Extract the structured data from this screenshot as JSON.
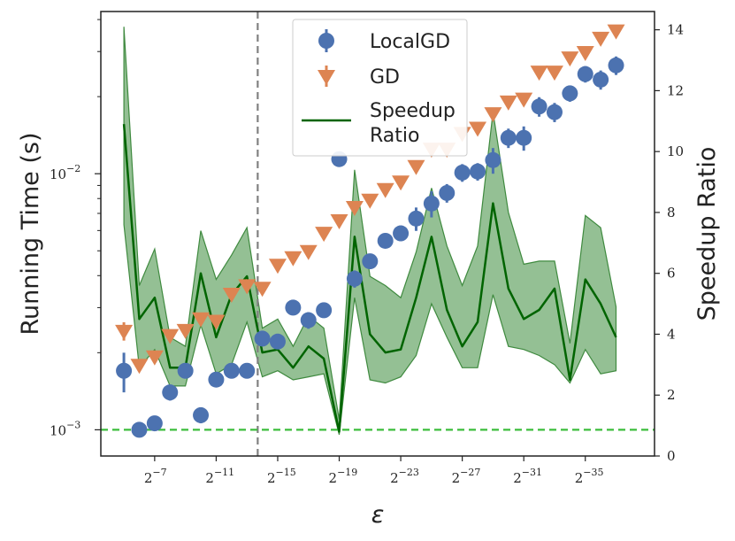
{
  "chart_data": {
    "type": "scatter",
    "xlabel": "ε",
    "ylabel_left": "Running Time (s)",
    "ylabel_right": "Speedup Ratio",
    "x_tick_base": "2",
    "x_ticks": [
      {
        "exp": -7,
        "label": "−7"
      },
      {
        "exp": -11,
        "label": "−11"
      },
      {
        "exp": -15,
        "label": "−15"
      },
      {
        "exp": -19,
        "label": "−19"
      },
      {
        "exp": -23,
        "label": "−23"
      },
      {
        "exp": -27,
        "label": "−27"
      },
      {
        "exp": -31,
        "label": "−31"
      },
      {
        "exp": -35,
        "label": "−35"
      }
    ],
    "y_left_ticks": [
      {
        "value": 0.01,
        "base": "10",
        "exp": "−2"
      },
      {
        "value": 0.001,
        "base": "10",
        "exp": "−3"
      }
    ],
    "y_left_lim": [
      0.00079,
      0.043
    ],
    "y_right_lim": [
      0,
      14.6
    ],
    "y_right_ticks": [
      0,
      2,
      4,
      6,
      8,
      10,
      12,
      14
    ],
    "x_exp_lim": [
      -3.5,
      -39.5
    ],
    "x_exp": [
      -5,
      -6,
      -7,
      -8,
      -9,
      -10,
      -11,
      -12,
      -13,
      -14,
      -15,
      -16,
      -17,
      -18,
      -19,
      -20,
      -21,
      -22,
      -23,
      -24,
      -25,
      -26,
      -27,
      -28,
      -29,
      -30,
      -31,
      -32,
      -33,
      -34,
      -35,
      -36,
      -37,
      -38
    ],
    "series": [
      {
        "name": "LocalGD",
        "color": "#4c72b0",
        "marker": "circle",
        "values": [
          0.0017,
          0.001,
          0.00106,
          0.0014,
          0.0017,
          0.00114,
          0.00157,
          0.0017,
          0.0017,
          0.00227,
          0.00221,
          0.003,
          0.00268,
          0.00293,
          0.0114,
          0.00389,
          0.00455,
          0.00547,
          0.00585,
          0.00668,
          0.00765,
          0.00841,
          0.0101,
          0.0102,
          0.0113,
          0.0138,
          0.0138,
          0.0183,
          0.0174,
          0.0206,
          0.0245,
          0.0233,
          0.0265,
          null
        ],
        "errors": [
          0.0003,
          5e-05,
          5e-05,
          0.0001,
          0.0001,
          8e-05,
          0.0001,
          6e-05,
          6e-05,
          0.0001,
          6e-05,
          0.0002,
          0.0002,
          0.0001,
          0.0003,
          0.0003,
          0.0003,
          0.0003,
          0.0004,
          0.0007,
          0.0009,
          0.0007,
          0.0008,
          0.0008,
          0.0013,
          0.0012,
          0.0015,
          0.0016,
          0.0015,
          0.0015,
          0.0018,
          0.002,
          0.0022,
          null
        ]
      },
      {
        "name": "GD",
        "color": "#dd8452",
        "marker": "triangle-down",
        "values": [
          0.00243,
          0.00179,
          0.00193,
          0.00234,
          0.00245,
          0.00272,
          0.00266,
          0.00339,
          0.00366,
          0.00358,
          0.0044,
          0.00471,
          0.00498,
          0.00587,
          0.00657,
          0.0074,
          0.0079,
          0.0087,
          0.0093,
          0.0107,
          0.0125,
          0.0125,
          0.0144,
          0.0151,
          0.0172,
          0.0191,
          0.0196,
          0.025,
          0.025,
          0.0284,
          0.0298,
          0.0339,
          0.0362,
          null
        ],
        "errors": [
          0.0002,
          6e-05,
          5e-05,
          0.0001,
          8e-05,
          0.0001,
          8e-05,
          0.0001,
          0.0001,
          0.0001,
          8e-05,
          8e-05,
          0.0001,
          0.0001,
          0.0001,
          0.0001,
          0.0001,
          0.0001,
          0.0001,
          0.0001,
          0.0002,
          0.0002,
          0.0002,
          0.0002,
          0.0003,
          0.0003,
          0.0003,
          0.0005,
          0.0005,
          0.0005,
          0.0005,
          0.0006,
          0.0007,
          null
        ]
      },
      {
        "name": "Speedup Ratio",
        "color": "#006400",
        "marker": "line",
        "axis": "right",
        "values": [
          10.9,
          4.5,
          5.2,
          2.9,
          2.9,
          6.0,
          3.9,
          5.3,
          5.9,
          3.4,
          3.5,
          2.9,
          3.6,
          3.2,
          0.8,
          7.2,
          4.0,
          3.4,
          3.5,
          5.2,
          7.2,
          4.8,
          3.6,
          4.4,
          8.3,
          5.5,
          4.5,
          4.8,
          5.5,
          2.5,
          5.8,
          5.0,
          3.9
        ],
        "band_upper": [
          14.1,
          5.6,
          6.8,
          3.9,
          3.6,
          7.4,
          5.8,
          6.6,
          7.5,
          4.2,
          4.5,
          3.6,
          4.6,
          4.2,
          1.2,
          9.4,
          5.9,
          5.6,
          5.2,
          6.7,
          8.8,
          6.9,
          5.6,
          6.9,
          11.3,
          8.0,
          6.3,
          6.4,
          6.4,
          3.7,
          7.9,
          7.5,
          4.9
        ],
        "band_lower": [
          7.6,
          2.9,
          3.5,
          2.3,
          2.3,
          4.3,
          2.7,
          3.0,
          4.4,
          2.6,
          2.8,
          2.5,
          2.6,
          2.7,
          0.7,
          5.2,
          2.5,
          2.4,
          2.6,
          3.3,
          5.0,
          3.9,
          2.9,
          2.9,
          5.3,
          3.6,
          3.5,
          3.3,
          3.0,
          2.4,
          3.5,
          2.7,
          2.8
        ],
        "band_color": "#5a9e5a"
      }
    ],
    "vertical_reference": {
      "exp": -13.7,
      "color": "#808080",
      "style": "dashed"
    },
    "horizontal_reference": {
      "value": 0.001,
      "color": "#3cbd3c",
      "style": "dashed"
    },
    "legend": {
      "placement": "top-center",
      "entries": [
        {
          "label_lines": [
            "LocalGD"
          ]
        },
        {
          "label_lines": [
            "GD"
          ]
        },
        {
          "label_lines": [
            "Speedup",
            "Ratio"
          ]
        }
      ]
    }
  }
}
